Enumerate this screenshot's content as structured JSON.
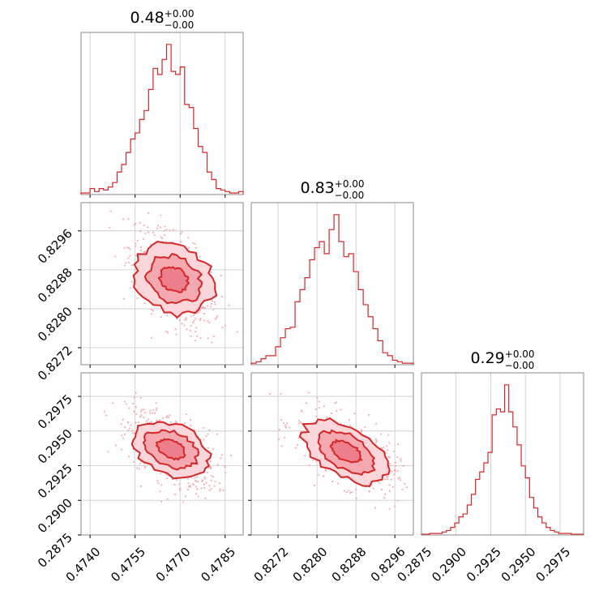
{
  "figure": {
    "type": "corner-plot",
    "accent_color": "#d62728",
    "contour_colors": [
      "#fbd6da",
      "#f4a8b0",
      "#ec7f8b"
    ]
  },
  "chart_data": [
    {
      "type": "histogram",
      "panel": "p1-diagonal",
      "title_value": "0.48",
      "title_upper": "+0.00",
      "title_lower": "−0.00",
      "xlim": [
        0.4737,
        0.4791
      ],
      "ylim": [
        0,
        1.08
      ],
      "x_ticks": [
        "0.4740",
        "0.4755",
        "0.4770",
        "0.4785"
      ],
      "x_tick_values": [
        0.474,
        0.4755,
        0.477,
        0.4785
      ],
      "bins": [
        0.4737,
        0.47385,
        0.474,
        0.47415,
        0.4743,
        0.47445,
        0.4746,
        0.47475,
        0.4749,
        0.47505,
        0.4752,
        0.47535,
        0.4755,
        0.47565,
        0.4758,
        0.47595,
        0.4761,
        0.47625,
        0.4764,
        0.47655,
        0.4767,
        0.47685,
        0.477,
        0.47715,
        0.4773,
        0.47745,
        0.4776,
        0.47775,
        0.4779,
        0.47805,
        0.4782,
        0.47835,
        0.4785,
        0.47865,
        0.4788,
        0.47895,
        0.4791
      ],
      "counts": [
        0.01,
        0.01,
        0.04,
        0.02,
        0.04,
        0.03,
        0.05,
        0.08,
        0.15,
        0.2,
        0.28,
        0.37,
        0.41,
        0.5,
        0.56,
        0.7,
        0.84,
        0.8,
        0.9,
        1.0,
        0.82,
        0.8,
        0.85,
        0.6,
        0.58,
        0.44,
        0.32,
        0.28,
        0.15,
        0.1,
        0.04,
        0.03,
        0.02,
        0.01,
        0.01,
        0.02
      ]
    },
    {
      "type": "histogram",
      "panel": "p2-diagonal",
      "title_value": "0.83",
      "title_upper": "+0.00",
      "title_lower": "−0.00",
      "xlim": [
        0.82665,
        0.82998
      ],
      "ylim": [
        0,
        1.08
      ],
      "x_ticks": [
        "0.8272",
        "0.8280",
        "0.8288",
        "0.8296"
      ],
      "x_tick_values": [
        0.8272,
        0.828,
        0.8288,
        0.8296
      ],
      "bins": [
        0.82665,
        0.82675,
        0.82685,
        0.82695,
        0.82705,
        0.82715,
        0.82725,
        0.82735,
        0.82745,
        0.82755,
        0.82765,
        0.82775,
        0.82785,
        0.82795,
        0.82805,
        0.82815,
        0.82825,
        0.82835,
        0.82845,
        0.82855,
        0.82865,
        0.82875,
        0.82885,
        0.82895,
        0.82905,
        0.82915,
        0.82925,
        0.82935,
        0.82945,
        0.82955,
        0.82965,
        0.82975,
        0.82985,
        0.82998
      ],
      "counts": [
        0.01,
        0.02,
        0.04,
        0.06,
        0.06,
        0.12,
        0.18,
        0.24,
        0.25,
        0.42,
        0.5,
        0.58,
        0.7,
        0.78,
        0.82,
        0.74,
        0.9,
        1.0,
        0.82,
        0.72,
        0.74,
        0.62,
        0.5,
        0.4,
        0.32,
        0.24,
        0.16,
        0.08,
        0.06,
        0.03,
        0.02,
        0.01,
        0.01
      ]
    },
    {
      "type": "histogram",
      "panel": "p3-diagonal",
      "title_value": "0.29",
      "title_upper": "+0.00",
      "title_lower": "−0.00",
      "xlim": [
        0.2875,
        0.2992
      ],
      "ylim": [
        0,
        1.08
      ],
      "x_ticks": [
        "0.2875",
        "0.2900",
        "0.2925",
        "0.2950",
        "0.2975"
      ],
      "x_tick_values": [
        0.2875,
        0.29,
        0.2925,
        0.295,
        0.2975
      ],
      "bins": [
        0.2875,
        0.2878,
        0.2881,
        0.2884,
        0.2887,
        0.289,
        0.2893,
        0.2896,
        0.2899,
        0.2902,
        0.2905,
        0.2908,
        0.2911,
        0.2914,
        0.2917,
        0.292,
        0.2923,
        0.2926,
        0.2929,
        0.2932,
        0.2935,
        0.2938,
        0.2941,
        0.2944,
        0.2947,
        0.295,
        0.2953,
        0.2956,
        0.2959,
        0.2962,
        0.2965,
        0.2968,
        0.2971,
        0.2974,
        0.2977,
        0.298,
        0.2983,
        0.2986,
        0.2989,
        0.2992
      ],
      "counts": [
        0.005,
        0.005,
        0.01,
        0.01,
        0.01,
        0.02,
        0.03,
        0.05,
        0.08,
        0.12,
        0.14,
        0.2,
        0.27,
        0.37,
        0.42,
        0.48,
        0.55,
        0.8,
        0.84,
        0.82,
        1.0,
        0.82,
        0.72,
        0.6,
        0.46,
        0.38,
        0.25,
        0.18,
        0.12,
        0.08,
        0.05,
        0.03,
        0.02,
        0.01,
        0.01,
        0.01,
        0.005,
        0.005,
        0.005
      ]
    },
    {
      "type": "scatter-contour",
      "panel": "p2-vs-p1",
      "xlim": [
        0.4737,
        0.4791
      ],
      "ylim": [
        0.82685,
        0.83018
      ],
      "y_ticks": [
        "0.8272",
        "0.8280",
        "0.8288",
        "0.8296"
      ],
      "y_tick_values": [
        0.8272,
        0.828,
        0.8288,
        0.8296
      ],
      "center": [
        0.4768,
        0.8286
      ],
      "spread": [
        0.0006,
        0.00045
      ],
      "correlation": -0.6
    },
    {
      "type": "scatter-contour",
      "panel": "p3-vs-p1",
      "xlim": [
        0.4737,
        0.4791
      ],
      "ylim": [
        0.2875,
        0.2992
      ],
      "y_ticks": [
        "0.2875",
        "0.2900",
        "0.2925",
        "0.2950",
        "0.2975"
      ],
      "y_tick_values": [
        0.2875,
        0.29,
        0.2925,
        0.295,
        0.2975
      ],
      "center": [
        0.4767,
        0.2937
      ],
      "spread": [
        0.0006,
        0.0012
      ],
      "correlation": -0.5
    },
    {
      "type": "scatter-contour",
      "panel": "p3-vs-p2",
      "xlim": [
        0.82665,
        0.82998
      ],
      "ylim": [
        0.2875,
        0.2992
      ],
      "center": [
        0.8286,
        0.2935
      ],
      "spread": [
        0.00042,
        0.0012
      ],
      "correlation": -0.6
    }
  ]
}
